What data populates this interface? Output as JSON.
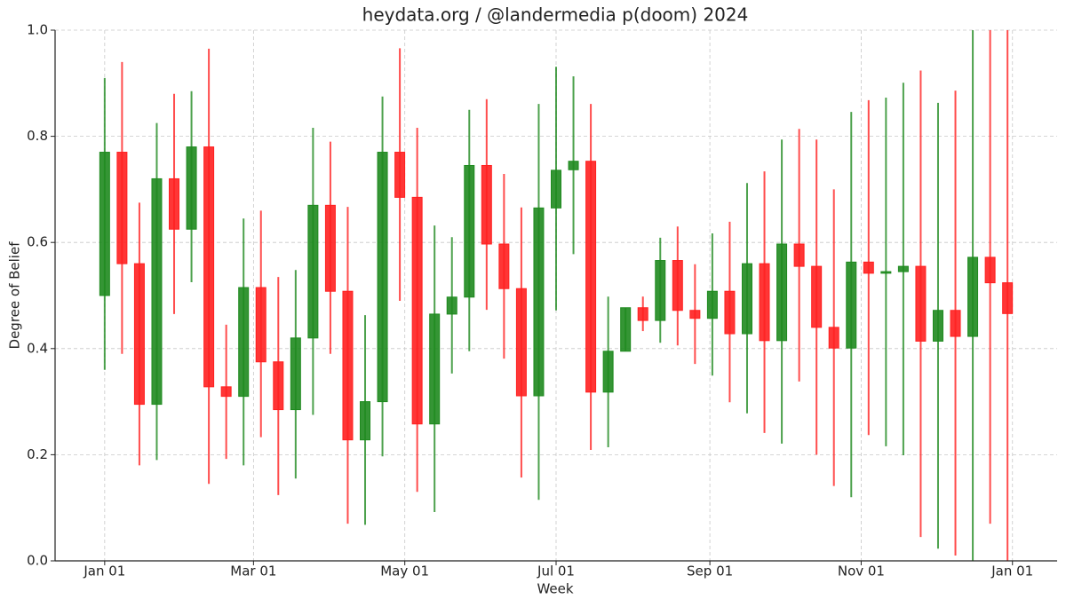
{
  "chart_data": {
    "type": "candlestick",
    "title": "heydata.org / @landermedia p(doom) 2024",
    "x_label": "Week",
    "y_label": "Degree of Belief",
    "x": [
      0,
      7,
      14,
      21,
      28,
      35,
      42,
      49,
      56,
      63,
      70,
      77,
      84,
      91,
      98,
      105,
      112,
      119,
      126,
      133,
      140,
      147,
      154,
      161,
      168,
      175,
      182,
      189,
      196,
      203,
      210,
      217,
      224,
      231,
      238,
      245,
      252,
      259,
      266,
      273,
      280,
      287,
      294,
      301,
      308,
      315,
      322,
      329,
      336,
      343,
      350,
      357,
      364
    ],
    "open": [
      0.5,
      0.77,
      0.56,
      0.295,
      0.72,
      0.625,
      0.78,
      0.328,
      0.31,
      0.515,
      0.375,
      0.285,
      0.42,
      0.67,
      0.508,
      0.228,
      0.3,
      0.77,
      0.685,
      0.258,
      0.465,
      0.497,
      0.745,
      0.597,
      0.513,
      0.311,
      0.665,
      0.737,
      0.753,
      0.318,
      0.395,
      0.477,
      0.453,
      0.566,
      0.472,
      0.457,
      0.508,
      0.428,
      0.56,
      0.415,
      0.597,
      0.555,
      0.44,
      0.401,
      0.563,
      0.542,
      0.545,
      0.555,
      0.414,
      0.472,
      0.423,
      0.572,
      0.524
    ],
    "high": [
      0.91,
      0.94,
      0.675,
      0.825,
      0.88,
      0.885,
      0.965,
      0.445,
      0.645,
      0.66,
      0.535,
      0.548,
      0.816,
      0.79,
      0.667,
      0.463,
      0.875,
      0.966,
      0.816,
      0.632,
      0.61,
      0.85,
      0.87,
      0.729,
      0.666,
      0.861,
      0.931,
      0.913,
      0.861,
      0.498,
      0.477,
      0.498,
      0.609,
      0.63,
      0.559,
      0.617,
      0.639,
      0.712,
      0.734,
      0.794,
      0.814,
      0.794,
      0.7,
      0.846,
      0.868,
      0.873,
      0.901,
      0.924,
      0.863,
      0.886,
      1.0,
      1.0,
      1.0
    ],
    "low": [
      0.36,
      0.39,
      0.18,
      0.19,
      0.465,
      0.525,
      0.145,
      0.192,
      0.18,
      0.233,
      0.124,
      0.155,
      0.275,
      0.39,
      0.07,
      0.068,
      0.197,
      0.49,
      0.13,
      0.092,
      0.353,
      0.395,
      0.473,
      0.381,
      0.157,
      0.115,
      0.472,
      0.578,
      0.209,
      0.214,
      0.395,
      0.433,
      0.411,
      0.406,
      0.371,
      0.349,
      0.299,
      0.278,
      0.241,
      0.221,
      0.338,
      0.2,
      0.141,
      0.12,
      0.237,
      0.216,
      0.199,
      0.045,
      0.023,
      0.01,
      0.0,
      0.07,
      0.0
    ],
    "close": [
      0.77,
      0.56,
      0.295,
      0.72,
      0.625,
      0.78,
      0.328,
      0.31,
      0.515,
      0.375,
      0.285,
      0.42,
      0.67,
      0.508,
      0.228,
      0.3,
      0.77,
      0.685,
      0.258,
      0.465,
      0.497,
      0.745,
      0.597,
      0.513,
      0.311,
      0.665,
      0.736,
      0.753,
      0.318,
      0.395,
      0.477,
      0.453,
      0.566,
      0.472,
      0.457,
      0.508,
      0.428,
      0.56,
      0.415,
      0.597,
      0.555,
      0.44,
      0.401,
      0.563,
      0.542,
      0.545,
      0.555,
      0.414,
      0.472,
      0.423,
      0.572,
      0.524,
      0.466
    ],
    "up_color": "#1f8a1f",
    "down_color": "#ff2020",
    "xlim": [
      -20,
      384
    ],
    "ylim": [
      0,
      1
    ],
    "xticks": [
      {
        "value": 0,
        "label": "Jan 01"
      },
      {
        "value": 60,
        "label": "Mar 01"
      },
      {
        "value": 121,
        "label": "May 01"
      },
      {
        "value": 182,
        "label": "Jul 01"
      },
      {
        "value": 244,
        "label": "Sep 01"
      },
      {
        "value": 305,
        "label": "Nov 01"
      },
      {
        "value": 366,
        "label": "Jan 01"
      }
    ],
    "yticks": [
      {
        "value": 0,
        "label": "0.0"
      },
      {
        "value": 0.2,
        "label": "0.2"
      },
      {
        "value": 0.4,
        "label": "0.4"
      },
      {
        "value": 0.6,
        "label": "0.6"
      },
      {
        "value": 0.8,
        "label": "0.8"
      },
      {
        "value": 1,
        "label": "1.0"
      }
    ],
    "grid": true
  }
}
